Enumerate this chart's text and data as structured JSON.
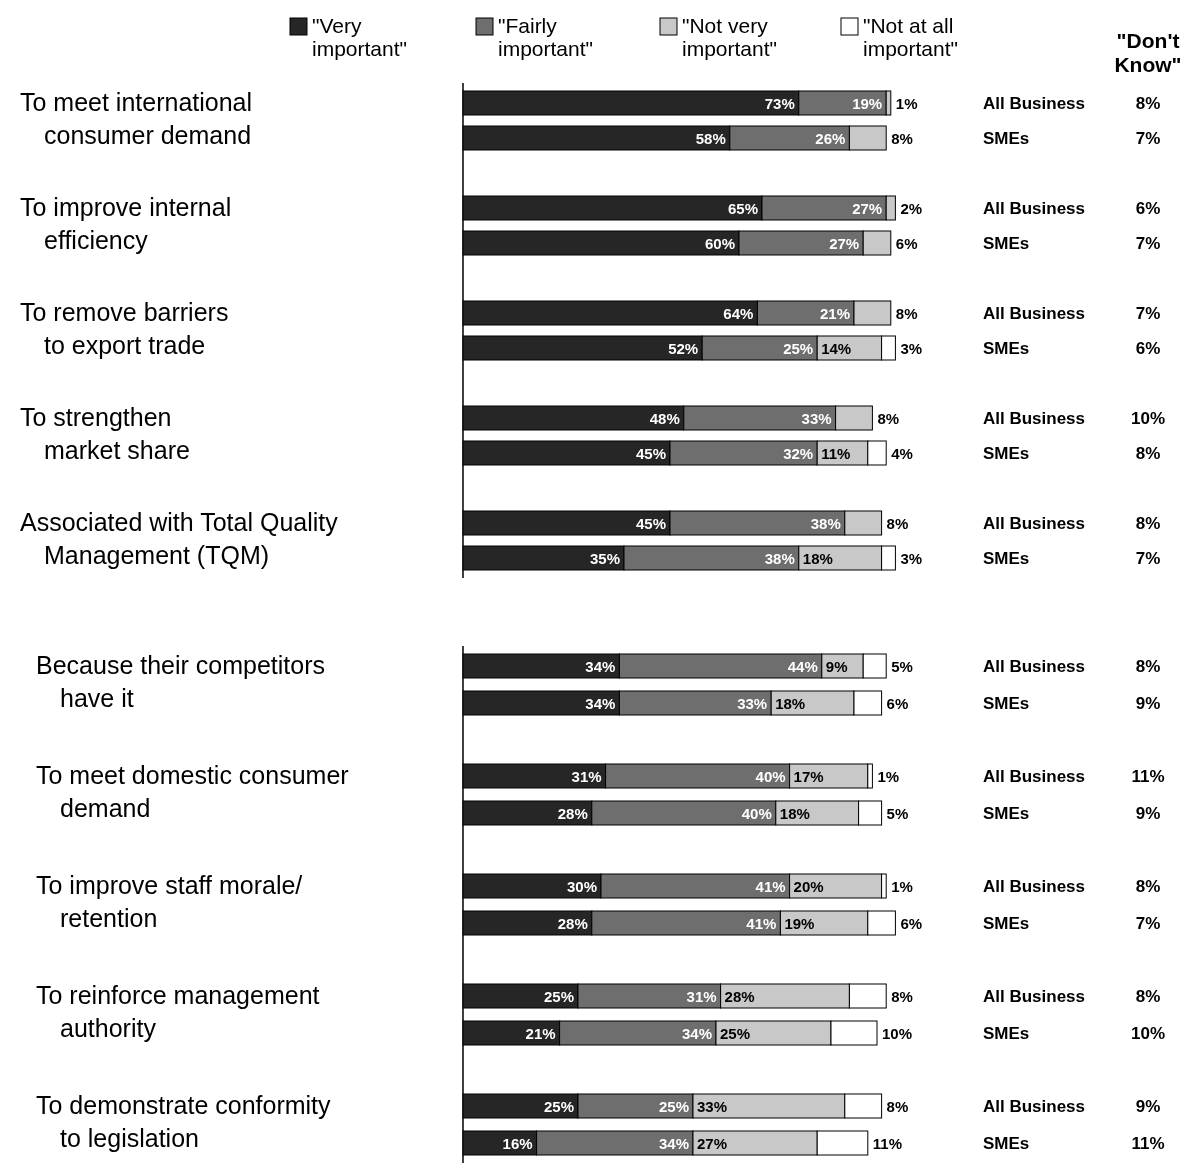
{
  "chart_data": [
    {
      "type": "bar",
      "orientation": "horizontal",
      "stacked": true,
      "legend": "top",
      "categories": [
        "All Business",
        "SMEs",
        "All Business",
        "SMEs",
        "All Business",
        "SMEs",
        "All Business",
        "SMEs",
        "All Business",
        "SMEs"
      ],
      "series": [
        {
          "name": "\"Very important\"",
          "color": "#262626",
          "values": [
            73,
            58,
            65,
            60,
            64,
            52,
            48,
            45,
            45,
            35
          ],
          "value_labels": [
            "73%",
            "58%",
            "65%",
            "60%",
            "64%",
            "52%",
            "48%",
            "45%",
            "45%",
            "35%"
          ]
        },
        {
          "name": "\"Fairly important\"",
          "color": "#6e6e6e",
          "values": [
            19,
            26,
            27,
            27,
            21,
            25,
            33,
            32,
            38,
            38
          ],
          "value_labels": [
            "19%",
            "26%",
            "27%",
            "27%",
            "21%",
            "25%",
            "33%",
            "32%",
            "38%",
            "38%"
          ]
        },
        {
          "name": "\"Not very important\"",
          "color": "#c8c8c8",
          "values": [
            1,
            8,
            2,
            6,
            8,
            14,
            8,
            11,
            8,
            18
          ],
          "value_labels": [
            "1%",
            "8%",
            "2%",
            "6%",
            "8%",
            "14%",
            "8%",
            "11%",
            "8%",
            "18%"
          ]
        },
        {
          "name": "\"Not at all important\"",
          "color": "#ffffff",
          "values": [
            null,
            null,
            null,
            null,
            null,
            3,
            null,
            4,
            null,
            3
          ],
          "value_labels": [
            null,
            null,
            null,
            null,
            null,
            "3%",
            null,
            "4%",
            null,
            "3%"
          ]
        }
      ],
      "annotations": [
        "To meet international\nconsumer demand",
        "To improve internal\nefficiency",
        "To remove barriers\nto export trade",
        "To strengthen\nmarket share",
        "Associated with Total Quality\nManagement (TQM)",
        "8%",
        "7%",
        "6%",
        "7%",
        "7%",
        "6%",
        "10%",
        "8%",
        "8%",
        "7%",
        "\"Don't Know\""
      ]
    },
    {
      "type": "bar",
      "orientation": "horizontal",
      "stacked": true,
      "categories": [
        "All Business",
        "SMEs",
        "All Business",
        "SMEs",
        "All Business",
        "SMEs",
        "All Business",
        "SMEs",
        "All Business",
        "SMEs"
      ],
      "series": [
        {
          "color": "#262626",
          "values": [
            34,
            34,
            31,
            28,
            30,
            28,
            25,
            21,
            25,
            16
          ],
          "value_labels": [
            "34%",
            "34%",
            "31%",
            "28%",
            "30%",
            "28%",
            "25%",
            "21%",
            "25%",
            "16%"
          ]
        },
        {
          "color": "#6e6e6e",
          "values": [
            44,
            33,
            40,
            40,
            41,
            41,
            31,
            34,
            25,
            34
          ],
          "value_labels": [
            "44%",
            "33%",
            "40%",
            "40%",
            "41%",
            "41%",
            "31%",
            "34%",
            "25%",
            "34%"
          ]
        },
        {
          "color": "#c8c8c8",
          "values": [
            9,
            18,
            17,
            18,
            20,
            19,
            28,
            25,
            33,
            27
          ],
          "value_labels": [
            "9%",
            "18%",
            "17%",
            "18%",
            "20%",
            "19%",
            "28%",
            "25%",
            "33%",
            "27%"
          ]
        },
        {
          "color": "#ffffff",
          "values": [
            5,
            6,
            1,
            5,
            1,
            6,
            8,
            10,
            8,
            11
          ],
          "value_labels": [
            "5%",
            "6%",
            "1%",
            "5%",
            "1%",
            "6%",
            "8%",
            "10%",
            "8%",
            "11%"
          ]
        }
      ],
      "annotations": [
        "Because their competitors\nhave it",
        "To meet domestic consumer\ndemand",
        "To improve staff  morale/\nretention",
        "To reinforce management\nauthority",
        "To demonstrate conformity\nto legislation",
        "8%",
        "9%",
        "11%",
        "9%",
        "8%",
        "7%",
        "8%",
        "10%",
        "9%",
        "11%"
      ]
    }
  ]
}
